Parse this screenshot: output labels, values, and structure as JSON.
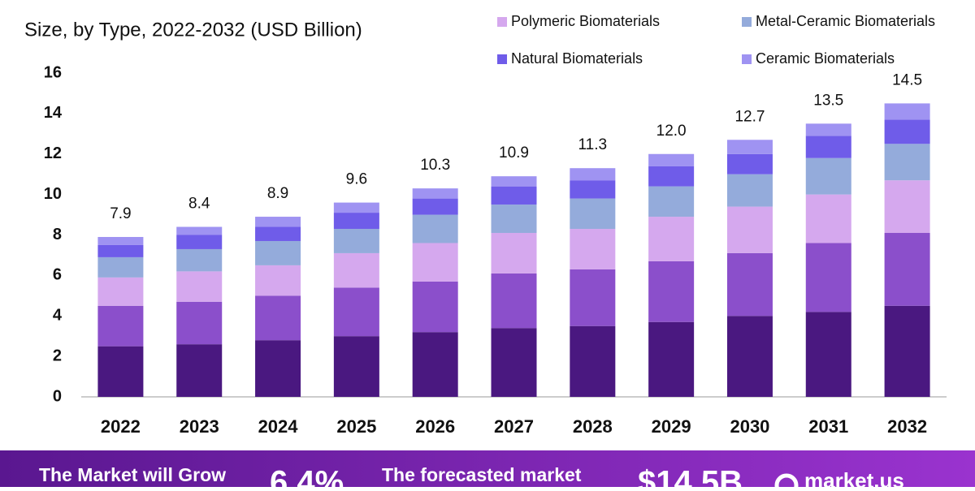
{
  "chart_data": {
    "type": "stacked-bar",
    "title": "Size, by Type, 2022-2032 (USD Billion)",
    "categories": [
      "2022",
      "2023",
      "2024",
      "2025",
      "2026",
      "2027",
      "2028",
      "2029",
      "2030",
      "2031",
      "2032"
    ],
    "series": [
      {
        "color": "#4a1880",
        "values": [
          2.5,
          2.6,
          2.8,
          3.0,
          3.2,
          3.4,
          3.5,
          3.7,
          4.0,
          4.2,
          4.5
        ]
      },
      {
        "color": "#8b4fcb",
        "values": [
          2.0,
          2.1,
          2.2,
          2.4,
          2.5,
          2.7,
          2.8,
          3.0,
          3.1,
          3.4,
          3.6
        ]
      },
      {
        "name": "Polymeric Biomaterials",
        "color": "#d5a8ee",
        "values": [
          1.4,
          1.5,
          1.5,
          1.7,
          1.9,
          2.0,
          2.0,
          2.2,
          2.3,
          2.4,
          2.6
        ]
      },
      {
        "name": "Metal-Ceramic Biomaterials",
        "color": "#94abdb",
        "values": [
          1.0,
          1.1,
          1.2,
          1.2,
          1.4,
          1.4,
          1.5,
          1.5,
          1.6,
          1.8,
          1.8
        ]
      },
      {
        "name": "Natural Biomaterials",
        "color": "#6f5ce9",
        "values": [
          0.6,
          0.7,
          0.7,
          0.8,
          0.8,
          0.9,
          0.9,
          1.0,
          1.0,
          1.1,
          1.2
        ]
      },
      {
        "name": "Ceramic Biomaterials",
        "color": "#9f93f2",
        "values": [
          0.4,
          0.4,
          0.5,
          0.5,
          0.5,
          0.5,
          0.6,
          0.6,
          0.7,
          0.6,
          0.8
        ]
      }
    ],
    "totals": {
      "values": [
        7.9,
        8.4,
        8.9,
        9.6,
        10.3,
        10.9,
        11.3,
        12.0,
        12.7,
        13.5,
        14.5
      ],
      "value_labels": [
        "7.9",
        "8.4",
        "8.9",
        "9.6",
        "10.3",
        "10.9",
        "11.3",
        "12.0",
        "12.7",
        "13.5",
        "14.5"
      ]
    },
    "ylim": [
      0,
      16
    ],
    "yticks": [
      0,
      2,
      4,
      6,
      8,
      10,
      12,
      14,
      16
    ],
    "grid": false,
    "legend": "top-right"
  },
  "banner": {
    "grow_text": "The Market will Grow",
    "cagr": "6.4%",
    "forecast_text": "The forecasted market",
    "forecast_value": "$14.5B",
    "brand": "market.us"
  }
}
